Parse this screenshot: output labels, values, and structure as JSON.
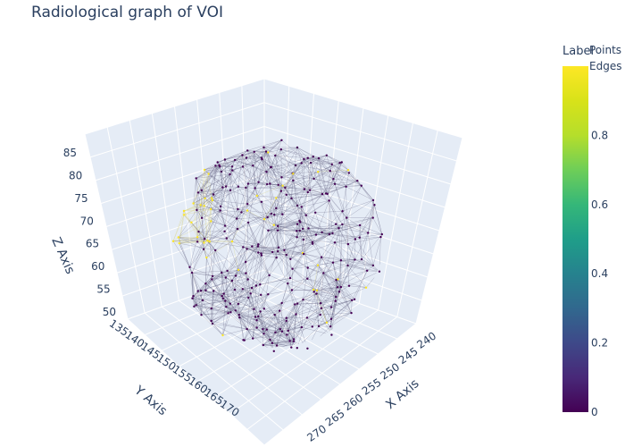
{
  "chart_data": {
    "type": "scatter3d",
    "title": "Radiological graph of VOI",
    "legend": {
      "entries": [
        "Points",
        "Edges"
      ],
      "position": "top-right"
    },
    "colorbar": {
      "title": "Label",
      "range": [
        0,
        1
      ],
      "ticks": [
        "0",
        "0.2",
        "0.4",
        "0.6",
        "0.8"
      ],
      "colorscale": "Viridis"
    },
    "axes": {
      "x": {
        "label": "X Axis",
        "ticks": [
          "240",
          "245",
          "250",
          "255",
          "260",
          "265",
          "270"
        ]
      },
      "y": {
        "label": "Y Axis",
        "ticks": [
          "135",
          "140",
          "145",
          "150",
          "155",
          "160",
          "165",
          "170"
        ]
      },
      "z": {
        "label": "Z Axis",
        "ticks": [
          "50",
          "55",
          "60",
          "65",
          "70",
          "75",
          "80",
          "85"
        ]
      }
    },
    "series": [
      {
        "name": "Points",
        "mode": "markers",
        "marker_colors": [
          "#440154",
          "#fde725"
        ]
      },
      {
        "name": "Edges",
        "mode": "lines"
      }
    ]
  }
}
